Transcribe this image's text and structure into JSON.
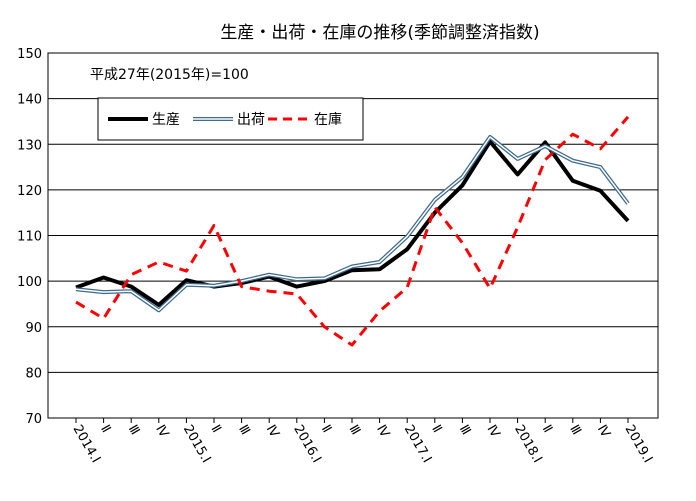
{
  "chart_data": {
    "type": "line",
    "title": "生産・出荷・在庫の推移(季節調整済指数)",
    "note": "平成27年(2015年)=100",
    "xlabel": "",
    "ylabel": "",
    "ylim": [
      70,
      150
    ],
    "yticks": [
      70,
      80,
      90,
      100,
      110,
      120,
      130,
      140,
      150
    ],
    "grid": true,
    "legend_position": "top-left",
    "categories": [
      "2014.Ⅰ",
      "Ⅱ",
      "Ⅲ",
      "Ⅳ",
      "2015.Ⅰ",
      "Ⅱ",
      "Ⅲ",
      "Ⅳ",
      "2016.Ⅰ",
      "Ⅱ",
      "Ⅲ",
      "Ⅳ",
      "2017.Ⅰ",
      "Ⅱ",
      "Ⅲ",
      "Ⅳ",
      "2018.Ⅰ",
      "Ⅱ",
      "Ⅲ",
      "Ⅳ",
      "2019.Ⅰ"
    ],
    "series": [
      {
        "name": "生産",
        "color": "#000000",
        "style": "solid-thick",
        "values": [
          98.6,
          100.8,
          98.8,
          94.8,
          100.2,
          98.8,
          99.6,
          101.0,
          98.8,
          100.0,
          102.4,
          102.6,
          107.0,
          115.0,
          121.0,
          130.6,
          123.4,
          130.4,
          122.0,
          119.8,
          113.2
        ]
      },
      {
        "name": "出荷",
        "color": "#3f6a8c",
        "style": "double-line",
        "values": [
          98.2,
          97.6,
          97.8,
          93.6,
          99.2,
          99.0,
          100.0,
          101.4,
          100.4,
          100.6,
          103.2,
          104.2,
          109.8,
          117.8,
          122.8,
          131.6,
          126.8,
          129.6,
          126.4,
          125.0,
          117.0
        ]
      },
      {
        "name": "在庫",
        "color": "#ff0000",
        "style": "dashed",
        "values": [
          95.4,
          91.8,
          101.4,
          104.2,
          102.2,
          112.2,
          98.8,
          97.8,
          97.2,
          90.0,
          86.0,
          93.4,
          98.6,
          116.2,
          108.4,
          98.4,
          111.8,
          126.6,
          132.2,
          129.0,
          136.0
        ]
      }
    ]
  }
}
